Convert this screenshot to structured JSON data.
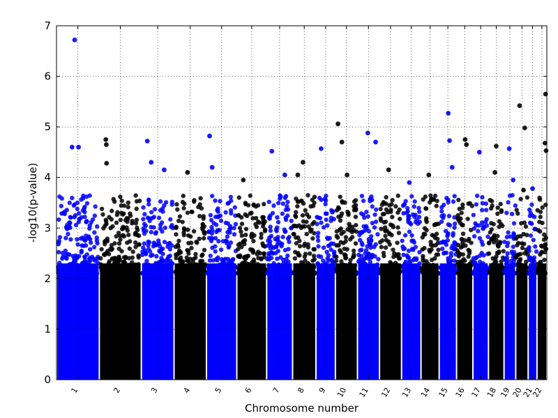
{
  "chart_data": {
    "type": "scatter",
    "title": "",
    "xlabel": "Chromosome number",
    "ylabel": "-log10(p-value)",
    "ylim": [
      0,
      7
    ],
    "yticks": [
      0,
      1,
      2,
      3,
      4,
      5,
      6,
      7
    ],
    "grid": true,
    "legend": "none",
    "colors": {
      "odd": "#0000ff",
      "even": "#000000"
    },
    "chromosomes": [
      {
        "label": "1",
        "start": 0,
        "end": 1.65
      },
      {
        "label": "2",
        "start": 1.65,
        "end": 3.27
      },
      {
        "label": "3",
        "start": 3.27,
        "end": 4.53
      },
      {
        "label": "4",
        "start": 4.53,
        "end": 5.78
      },
      {
        "label": "5",
        "start": 5.78,
        "end": 6.95
      },
      {
        "label": "6",
        "start": 6.95,
        "end": 8.1
      },
      {
        "label": "7",
        "start": 8.1,
        "end": 9.1
      },
      {
        "label": "8",
        "start": 9.1,
        "end": 10.0
      },
      {
        "label": "9",
        "start": 10.0,
        "end": 10.75
      },
      {
        "label": "10",
        "start": 10.75,
        "end": 11.6
      },
      {
        "label": "11",
        "start": 11.6,
        "end": 12.45
      },
      {
        "label": "12",
        "start": 12.45,
        "end": 13.3
      },
      {
        "label": "13",
        "start": 13.3,
        "end": 14.05
      },
      {
        "label": "14",
        "start": 14.05,
        "end": 14.75
      },
      {
        "label": "15",
        "start": 14.75,
        "end": 15.42
      },
      {
        "label": "16",
        "start": 15.42,
        "end": 16.05
      },
      {
        "label": "17",
        "start": 16.05,
        "end": 16.65
      },
      {
        "label": "18",
        "start": 16.65,
        "end": 17.25
      },
      {
        "label": "19",
        "start": 17.25,
        "end": 17.7
      },
      {
        "label": "20",
        "start": 17.7,
        "end": 18.18
      },
      {
        "label": "21",
        "start": 18.18,
        "end": 18.52
      },
      {
        "label": "22",
        "start": 18.52,
        "end": 18.9
      }
    ],
    "top_hits": [
      {
        "chr": "1",
        "pos": 0.7,
        "y": 6.72
      },
      {
        "chr": "1",
        "pos": 0.6,
        "y": 4.6
      },
      {
        "chr": "1",
        "pos": 0.85,
        "y": 4.6
      },
      {
        "chr": "2",
        "pos": 1.9,
        "y": 4.75
      },
      {
        "chr": "2",
        "pos": 1.92,
        "y": 4.65
      },
      {
        "chr": "2",
        "pos": 1.93,
        "y": 4.28
      },
      {
        "chr": "3",
        "pos": 3.5,
        "y": 4.72
      },
      {
        "chr": "3",
        "pos": 3.65,
        "y": 4.3
      },
      {
        "chr": "3",
        "pos": 4.15,
        "y": 4.15
      },
      {
        "chr": "4",
        "pos": 5.05,
        "y": 4.1
      },
      {
        "chr": "5",
        "pos": 5.9,
        "y": 4.82
      },
      {
        "chr": "5",
        "pos": 6.0,
        "y": 4.2
      },
      {
        "chr": "6",
        "pos": 7.2,
        "y": 3.95
      },
      {
        "chr": "7",
        "pos": 8.3,
        "y": 4.52
      },
      {
        "chr": "7",
        "pos": 8.8,
        "y": 4.05
      },
      {
        "chr": "8",
        "pos": 9.5,
        "y": 4.3
      },
      {
        "chr": "8",
        "pos": 9.3,
        "y": 4.05
      },
      {
        "chr": "9",
        "pos": 10.2,
        "y": 4.57
      },
      {
        "chr": "10",
        "pos": 10.85,
        "y": 5.06
      },
      {
        "chr": "10",
        "pos": 11.0,
        "y": 4.7
      },
      {
        "chr": "10",
        "pos": 11.2,
        "y": 4.05
      },
      {
        "chr": "11",
        "pos": 12.0,
        "y": 4.88
      },
      {
        "chr": "11",
        "pos": 12.3,
        "y": 4.7
      },
      {
        "chr": "12",
        "pos": 12.8,
        "y": 4.15
      },
      {
        "chr": "13",
        "pos": 13.6,
        "y": 3.9
      },
      {
        "chr": "14",
        "pos": 14.35,
        "y": 4.05
      },
      {
        "chr": "15",
        "pos": 15.1,
        "y": 5.27
      },
      {
        "chr": "15",
        "pos": 15.15,
        "y": 4.73
      },
      {
        "chr": "15",
        "pos": 15.25,
        "y": 4.2
      },
      {
        "chr": "16",
        "pos": 15.75,
        "y": 4.75
      },
      {
        "chr": "16",
        "pos": 15.8,
        "y": 4.65
      },
      {
        "chr": "17",
        "pos": 16.3,
        "y": 4.5
      },
      {
        "chr": "18",
        "pos": 16.95,
        "y": 4.62
      },
      {
        "chr": "18",
        "pos": 16.9,
        "y": 4.1
      },
      {
        "chr": "19",
        "pos": 17.45,
        "y": 4.57
      },
      {
        "chr": "19",
        "pos": 17.6,
        "y": 3.95
      },
      {
        "chr": "20",
        "pos": 17.85,
        "y": 5.42
      },
      {
        "chr": "20",
        "pos": 18.05,
        "y": 4.98
      },
      {
        "chr": "20",
        "pos": 18.0,
        "y": 3.75
      },
      {
        "chr": "21",
        "pos": 18.35,
        "y": 3.78
      },
      {
        "chr": "22",
        "pos": 18.85,
        "y": 5.65
      },
      {
        "chr": "22",
        "pos": 18.83,
        "y": 4.68
      },
      {
        "chr": "22",
        "pos": 18.87,
        "y": 4.53
      }
    ]
  }
}
